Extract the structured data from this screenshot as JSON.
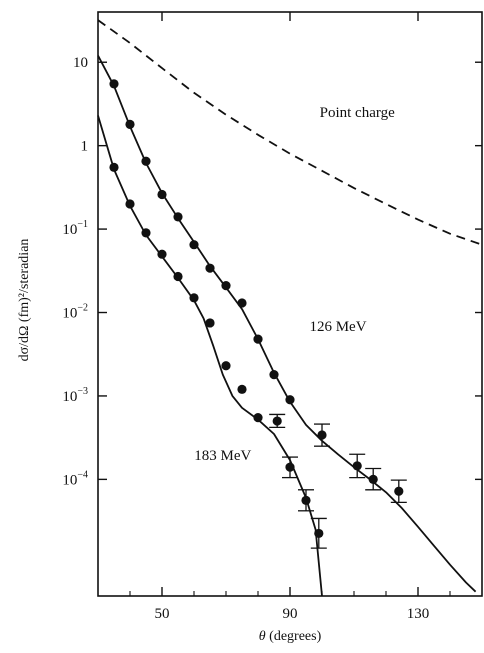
{
  "chart_data": {
    "type": "scatter",
    "xlabel_symbol": "θ",
    "xlabel_rest": " (degrees)",
    "ylabel": "dσ/dΩ (fm)²/steradian",
    "xlim": [
      30,
      150
    ],
    "ylim": [
      4e-06,
      40
    ],
    "yscale": "log",
    "x_ticks": [
      50,
      90,
      130
    ],
    "x_tick_labels": [
      "50",
      "90",
      "130"
    ],
    "y_ticks": [
      10,
      1,
      0.1,
      0.01,
      0.001,
      0.0001
    ],
    "y_tick_labels": [
      {
        "base": "10",
        "exp": ""
      },
      {
        "base": "1",
        "exp": ""
      },
      {
        "base": "10",
        "exp": "−1"
      },
      {
        "base": "10",
        "exp": "−2"
      },
      {
        "base": "10",
        "exp": "−3"
      },
      {
        "base": "10",
        "exp": "−4"
      }
    ],
    "grid": false,
    "series": [
      {
        "name": "126 MeV",
        "style": "points",
        "color": "#111111",
        "points": [
          {
            "x": 35,
            "y": 5.5
          },
          {
            "x": 40,
            "y": 1.8
          },
          {
            "x": 45,
            "y": 0.65
          },
          {
            "x": 50,
            "y": 0.26
          },
          {
            "x": 55,
            "y": 0.14
          },
          {
            "x": 60,
            "y": 0.065
          },
          {
            "x": 65,
            "y": 0.034
          },
          {
            "x": 70,
            "y": 0.021
          },
          {
            "x": 75,
            "y": 0.013
          },
          {
            "x": 80,
            "y": 0.0048
          },
          {
            "x": 85,
            "y": 0.0018
          },
          {
            "x": 90,
            "y": 0.0009
          },
          {
            "x": 100,
            "y": 0.00034,
            "err": [
              0.00025,
              0.00046
            ]
          },
          {
            "x": 111,
            "y": 0.000145,
            "err": [
              0.000105,
              0.0002
            ]
          },
          {
            "x": 116,
            "y": 0.0001,
            "err": [
              7.5e-05,
              0.000135
            ]
          },
          {
            "x": 124,
            "y": 7.2e-05,
            "err": [
              5.3e-05,
              9.8e-05
            ]
          }
        ]
      },
      {
        "name": "183 MeV",
        "style": "points",
        "color": "#111111",
        "points": [
          {
            "x": 35,
            "y": 0.55
          },
          {
            "x": 40,
            "y": 0.2
          },
          {
            "x": 45,
            "y": 0.09
          },
          {
            "x": 50,
            "y": 0.05
          },
          {
            "x": 55,
            "y": 0.027
          },
          {
            "x": 60,
            "y": 0.015
          },
          {
            "x": 65,
            "y": 0.0075
          },
          {
            "x": 70,
            "y": 0.0023
          },
          {
            "x": 75,
            "y": 0.0012
          },
          {
            "x": 80,
            "y": 0.00055
          },
          {
            "x": 86,
            "y": 0.0005,
            "err": [
              0.00042,
              0.0006
            ]
          },
          {
            "x": 90,
            "y": 0.00014,
            "err": [
              0.000105,
              0.000185
            ]
          },
          {
            "x": 95,
            "y": 5.6e-05,
            "err": [
              4.2e-05,
              7.5e-05
            ]
          },
          {
            "x": 99,
            "y": 2.25e-05,
            "err": [
              1.5e-05,
              3.4e-05
            ]
          }
        ]
      },
      {
        "name": "126 MeV",
        "style": "solid",
        "color": "#111111",
        "points": [
          {
            "x": 30,
            "y": 12
          },
          {
            "x": 35,
            "y": 5.2
          },
          {
            "x": 40,
            "y": 1.7
          },
          {
            "x": 45,
            "y": 0.62
          },
          {
            "x": 50,
            "y": 0.27
          },
          {
            "x": 55,
            "y": 0.135
          },
          {
            "x": 60,
            "y": 0.07
          },
          {
            "x": 65,
            "y": 0.036
          },
          {
            "x": 70,
            "y": 0.02
          },
          {
            "x": 75,
            "y": 0.011
          },
          {
            "x": 80,
            "y": 0.0048
          },
          {
            "x": 85,
            "y": 0.0019
          },
          {
            "x": 90,
            "y": 0.00085
          },
          {
            "x": 95,
            "y": 0.00045
          },
          {
            "x": 100,
            "y": 0.00029
          },
          {
            "x": 105,
            "y": 0.0002
          },
          {
            "x": 110,
            "y": 0.00014
          },
          {
            "x": 115,
            "y": 0.0001
          },
          {
            "x": 120,
            "y": 7e-05
          },
          {
            "x": 125,
            "y": 4.5e-05
          },
          {
            "x": 130,
            "y": 2.7e-05
          },
          {
            "x": 135,
            "y": 1.6e-05
          },
          {
            "x": 140,
            "y": 9.5e-06
          },
          {
            "x": 145,
            "y": 5.8e-06
          },
          {
            "x": 148,
            "y": 4.5e-06
          }
        ]
      },
      {
        "name": "183 MeV",
        "style": "solid",
        "color": "#111111",
        "points": [
          {
            "x": 30,
            "y": 2.3
          },
          {
            "x": 35,
            "y": 0.52
          },
          {
            "x": 40,
            "y": 0.19
          },
          {
            "x": 45,
            "y": 0.085
          },
          {
            "x": 50,
            "y": 0.047
          },
          {
            "x": 55,
            "y": 0.026
          },
          {
            "x": 60,
            "y": 0.014
          },
          {
            "x": 63,
            "y": 0.0085
          },
          {
            "x": 66,
            "y": 0.004
          },
          {
            "x": 69,
            "y": 0.0018
          },
          {
            "x": 72,
            "y": 0.001
          },
          {
            "x": 75,
            "y": 0.00072
          },
          {
            "x": 80,
            "y": 0.00052
          },
          {
            "x": 85,
            "y": 0.00035
          },
          {
            "x": 90,
            "y": 0.00017
          },
          {
            "x": 95,
            "y": 6e-05
          },
          {
            "x": 98,
            "y": 2.5e-05
          },
          {
            "x": 100,
            "y": 4e-06
          }
        ]
      },
      {
        "name": "Point charge",
        "style": "dashed",
        "color": "#111111",
        "points": [
          {
            "x": 30,
            "y": 32
          },
          {
            "x": 40,
            "y": 17
          },
          {
            "x": 50,
            "y": 8.5
          },
          {
            "x": 60,
            "y": 4.3
          },
          {
            "x": 70,
            "y": 2.35
          },
          {
            "x": 80,
            "y": 1.35
          },
          {
            "x": 90,
            "y": 0.8
          },
          {
            "x": 100,
            "y": 0.5
          },
          {
            "x": 110,
            "y": 0.31
          },
          {
            "x": 120,
            "y": 0.2
          },
          {
            "x": 130,
            "y": 0.13
          },
          {
            "x": 140,
            "y": 0.088
          },
          {
            "x": 150,
            "y": 0.065
          }
        ]
      }
    ],
    "annotations": [
      {
        "text": "Point charge",
        "x": 111,
        "y": 2.2
      },
      {
        "text": "126 MeV",
        "x": 105,
        "y": 0.006
      },
      {
        "text": "183 MeV",
        "x": 69,
        "y": 0.00017
      }
    ]
  }
}
